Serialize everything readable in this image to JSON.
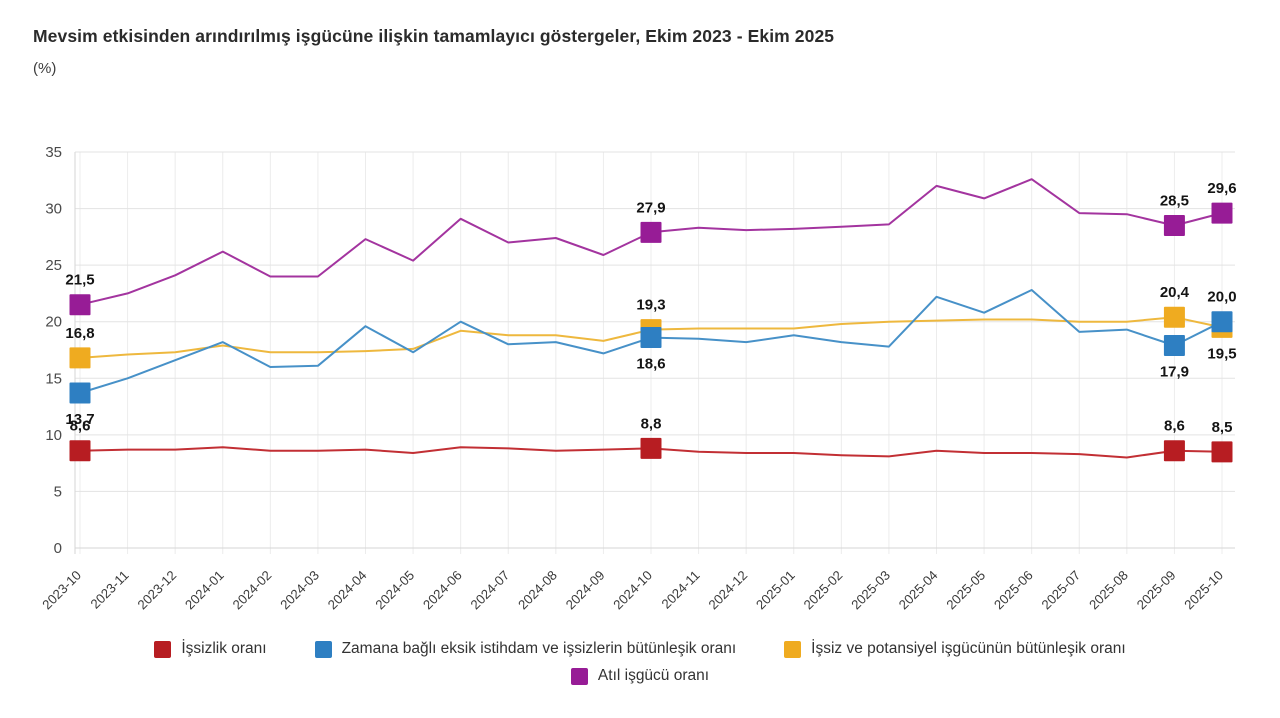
{
  "chart_data": {
    "type": "line",
    "title": "Mevsim etkisinden arındırılmış işgücüne ilişkin tamamlayıcı göstergeler, Ekim 2023 - Ekim 2025",
    "subtitle": "(%)",
    "x": [
      "2023-10",
      "2023-11",
      "2023-12",
      "2024-01",
      "2024-02",
      "2024-03",
      "2024-04",
      "2024-05",
      "2024-06",
      "2024-07",
      "2024-08",
      "2024-09",
      "2024-10",
      "2024-11",
      "2024-12",
      "2025-01",
      "2025-02",
      "2025-03",
      "2025-04",
      "2025-05",
      "2025-06",
      "2025-07",
      "2025-08",
      "2025-09",
      "2025-10"
    ],
    "ylim": [
      0,
      35
    ],
    "ytick_step": 5,
    "grid": true,
    "legend_position": "bottom",
    "series": [
      {
        "name": "İşsizlik oranı",
        "marker_color": "#b71d22",
        "line_color": "#c22f34",
        "values": [
          8.6,
          8.7,
          8.7,
          8.9,
          8.6,
          8.6,
          8.7,
          8.4,
          8.9,
          8.8,
          8.6,
          8.7,
          8.8,
          8.5,
          8.4,
          8.4,
          8.2,
          8.1,
          8.6,
          8.4,
          8.4,
          8.3,
          8.0,
          8.6,
          8.5
        ],
        "highlights": [
          {
            "i": 0,
            "label": "8,6",
            "pos": "above"
          },
          {
            "i": 12,
            "label": "8,8",
            "pos": "above"
          },
          {
            "i": 23,
            "label": "8,6",
            "pos": "above"
          },
          {
            "i": 24,
            "label": "8,5",
            "pos": "above"
          }
        ]
      },
      {
        "name": "Zamana bağlı eksik istihdam ve işsizlerin bütünleşik oranı",
        "marker_color": "#2e7fc2",
        "line_color": "#4791c8",
        "values": [
          13.7,
          15.0,
          16.6,
          18.2,
          16.0,
          16.1,
          19.6,
          17.3,
          20.0,
          18.0,
          18.2,
          17.2,
          18.6,
          18.5,
          18.2,
          18.8,
          18.2,
          17.8,
          22.2,
          20.8,
          22.8,
          19.1,
          19.3,
          17.9,
          20.0
        ],
        "highlights": [
          {
            "i": 0,
            "label": "13,7",
            "pos": "below"
          },
          {
            "i": 12,
            "label": "18,6",
            "pos": "below"
          },
          {
            "i": 23,
            "label": "17,9",
            "pos": "below"
          },
          {
            "i": 24,
            "label": "20,0",
            "pos": "above"
          }
        ]
      },
      {
        "name": "İşsiz ve potansiyel işgücünün bütünleşik oranı",
        "marker_color": "#efab20",
        "line_color": "#eeb83e",
        "values": [
          16.8,
          17.1,
          17.3,
          17.9,
          17.3,
          17.3,
          17.4,
          17.6,
          19.2,
          18.8,
          18.8,
          18.3,
          19.3,
          19.4,
          19.4,
          19.4,
          19.8,
          20.0,
          20.1,
          20.2,
          20.2,
          20.0,
          20.0,
          20.4,
          19.5
        ],
        "highlights": [
          {
            "i": 0,
            "label": "16,8",
            "pos": "above"
          },
          {
            "i": 12,
            "label": "19,3",
            "pos": "above"
          },
          {
            "i": 23,
            "label": "20,4",
            "pos": "above"
          },
          {
            "i": 24,
            "label": "19,5",
            "pos": "below"
          }
        ]
      },
      {
        "name": "Atıl işgücü oranı",
        "marker_color": "#971c96",
        "line_color": "#a3349f",
        "values": [
          21.5,
          22.5,
          24.1,
          26.2,
          24.0,
          24.0,
          27.3,
          25.4,
          29.1,
          27.0,
          27.4,
          25.9,
          27.9,
          28.3,
          28.1,
          28.2,
          28.4,
          28.6,
          32.0,
          30.9,
          32.6,
          29.6,
          29.5,
          28.5,
          29.6
        ],
        "highlights": [
          {
            "i": 0,
            "label": "21,5",
            "pos": "above"
          },
          {
            "i": 12,
            "label": "27,9",
            "pos": "above"
          },
          {
            "i": 23,
            "label": "28,5",
            "pos": "above"
          },
          {
            "i": 24,
            "label": "29,6",
            "pos": "above"
          }
        ]
      }
    ],
    "legend": {
      "rows": [
        [
          0,
          1,
          2
        ],
        [
          3
        ]
      ]
    }
  }
}
